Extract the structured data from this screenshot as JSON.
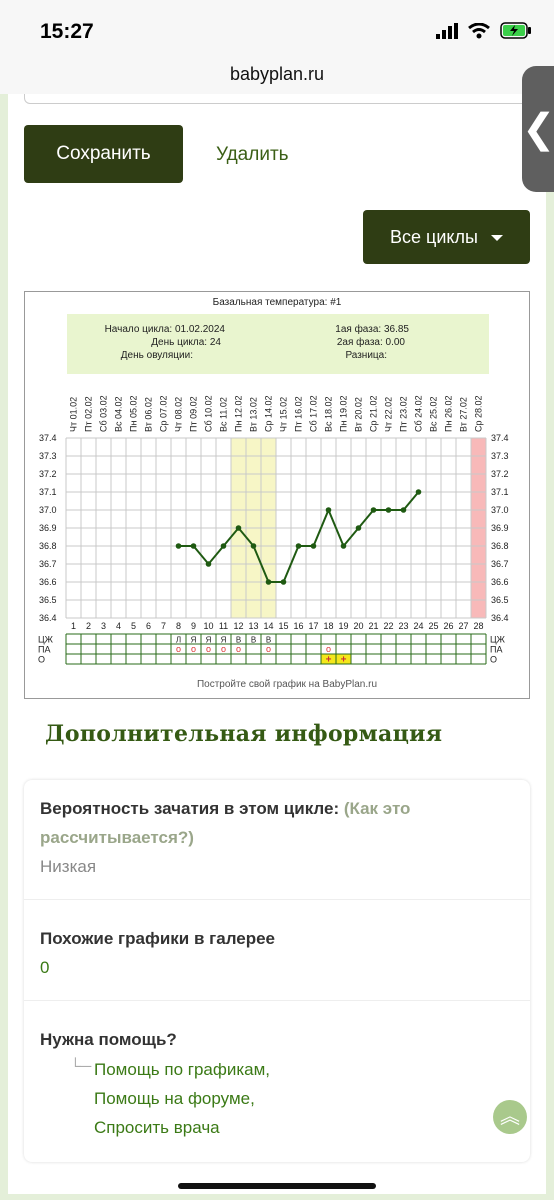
{
  "status": {
    "time": "15:27"
  },
  "browser": {
    "url": "babyplan.ru"
  },
  "actions": {
    "save_label": "Сохранить",
    "delete_label": "Удалить",
    "cycles_label": "Все циклы"
  },
  "chart_data": {
    "type": "line",
    "title": "Базальная температура: #1",
    "info": {
      "start_label": "Начало цикла: 01.02.2024",
      "day_label": "День цикла: 24",
      "ovulation_label": "День овуляции:",
      "phase1_label": "1ая фаза: 36.85",
      "phase2_label": "2ая фаза: 0.00",
      "diff_label": "Разница:"
    },
    "dates": [
      "Чт 01.02",
      "Пт 02.02",
      "Сб 03.02",
      "Вс 04.02",
      "Пн 05.02",
      "Вт 06.02",
      "Ср 07.02",
      "Чт 08.02",
      "Пт 09.02",
      "Сб 10.02",
      "Вс 11.02",
      "Пн 12.02",
      "Вт 13.02",
      "Ср 14.02",
      "Чт 15.02",
      "Пт 16.02",
      "Сб 17.02",
      "Вс 18.02",
      "Пн 19.02",
      "Вт 20.02",
      "Ср 21.02",
      "Чт 22.02",
      "Пт 23.02",
      "Сб 24.02",
      "Вс 25.02",
      "Пн 26.02",
      "Вт 27.02",
      "Ср 28.02"
    ],
    "days": [
      "1",
      "2",
      "3",
      "4",
      "5",
      "6",
      "7",
      "8",
      "9",
      "10",
      "11",
      "12",
      "13",
      "14",
      "15",
      "16",
      "17",
      "18",
      "19",
      "20",
      "21",
      "22",
      "23",
      "24",
      "25",
      "26",
      "27",
      "28"
    ],
    "y_ticks": [
      "37.4",
      "37.3",
      "37.2",
      "37.1",
      "37.0",
      "36.9",
      "36.8",
      "36.7",
      "36.6",
      "36.5",
      "36.4"
    ],
    "ylim": [
      36.4,
      37.4
    ],
    "temperature": [
      {
        "day": 8,
        "value": 36.8
      },
      {
        "day": 9,
        "value": 36.8
      },
      {
        "day": 10,
        "value": 36.7
      },
      {
        "day": 11,
        "value": 36.8
      },
      {
        "day": 12,
        "value": 36.9
      },
      {
        "day": 13,
        "value": 36.8
      },
      {
        "day": 14,
        "value": 36.6
      },
      {
        "day": 15,
        "value": 36.6
      },
      {
        "day": 16,
        "value": 36.8
      },
      {
        "day": 17,
        "value": 36.8
      },
      {
        "day": 18,
        "value": 37.0
      },
      {
        "day": 19,
        "value": 36.8
      },
      {
        "day": 20,
        "value": 36.9
      },
      {
        "day": 21,
        "value": 37.0
      },
      {
        "day": 22,
        "value": 37.0
      },
      {
        "day": 23,
        "value": 37.0
      },
      {
        "day": 24,
        "value": 37.1
      }
    ],
    "fertile_window": [
      12,
      14
    ],
    "last_day_highlight": 28,
    "row_labels": [
      "ЦЖ",
      "ПА",
      "О"
    ],
    "cz_marks": [
      {
        "day": 8,
        "mark": "Л"
      },
      {
        "day": 9,
        "mark": "Я"
      },
      {
        "day": 10,
        "mark": "Я"
      },
      {
        "day": 11,
        "mark": "Я"
      },
      {
        "day": 12,
        "mark": "В"
      },
      {
        "day": 13,
        "mark": "В"
      },
      {
        "day": 14,
        "mark": "В"
      }
    ],
    "pa_marks": [
      {
        "day": 8,
        "mark": "o"
      },
      {
        "day": 9,
        "mark": "o"
      },
      {
        "day": 10,
        "mark": "o"
      },
      {
        "day": 11,
        "mark": "o"
      },
      {
        "day": 12,
        "mark": "o"
      },
      {
        "day": 14,
        "mark": "o"
      },
      {
        "day": 18,
        "mark": "o"
      }
    ],
    "o_marks": [
      {
        "day": 18,
        "mark": "+"
      },
      {
        "day": 19,
        "mark": "+"
      }
    ],
    "colors": {
      "line": "#1f5a12",
      "fertile": "#f7f6c6",
      "last_day": "#f8b9b9",
      "info_bg": "#e9f5cf",
      "test_positive": "#f4e71b"
    },
    "footer": "Постройте свой график на BabyPlan.ru"
  },
  "info": {
    "title": "Дополнительная информация",
    "probability_label": "Вероятность зачатия в этом цикле:",
    "probability_hint": "(Как это рассчитывается?)",
    "probability_value": "Низкая",
    "similar_label": "Похожие графики в галерее",
    "similar_value": "0",
    "help_label": "Нужна помощь?",
    "help_links": [
      "Помощь по графикам,",
      "Помощь на форуме,",
      "Спросить врача"
    ]
  }
}
